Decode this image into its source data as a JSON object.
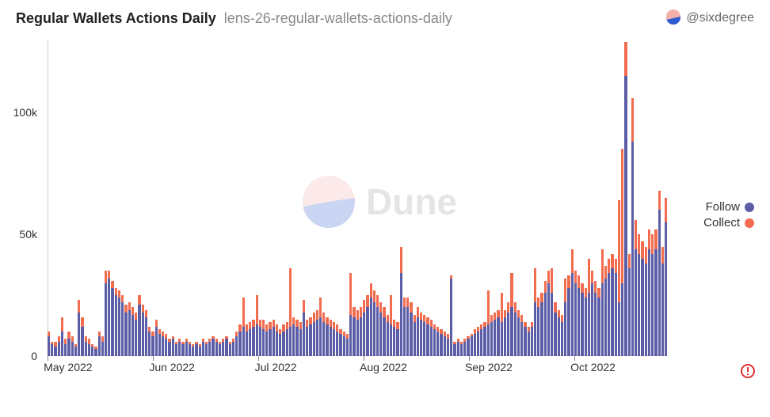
{
  "header": {
    "title": "Regular Wallets Actions Daily",
    "subtitle": "lens-26-regular-wallets-actions-daily",
    "author": "@sixdegree"
  },
  "chart": {
    "type": "stacked-bar",
    "y": {
      "min": 0,
      "max": 130000,
      "ticks": [
        0,
        50000,
        100000
      ],
      "tick_labels": [
        "0",
        "50k",
        "100k"
      ]
    },
    "x": {
      "ticks": [
        "May 2022",
        "Jun 2022",
        "Jul 2022",
        "Aug 2022",
        "Sep 2022",
        "Oct 2022"
      ],
      "tick_positions_pct": [
        0,
        17,
        34,
        51,
        68,
        85
      ]
    },
    "series": [
      {
        "name": "Follow",
        "color": "#5b5ea6"
      },
      {
        "name": "Collect",
        "color": "#f26c4f"
      }
    ],
    "follow": [
      8,
      5,
      4,
      6,
      10,
      5,
      7,
      6,
      4,
      18,
      12,
      6,
      5,
      4,
      3,
      8,
      6,
      30,
      32,
      28,
      25,
      24,
      22,
      18,
      19,
      17,
      15,
      21,
      18,
      16,
      10,
      8,
      12,
      9,
      8,
      7,
      6,
      7,
      5,
      6,
      5,
      6,
      5,
      4,
      5,
      4,
      6,
      5,
      6,
      7,
      6,
      5,
      6,
      7,
      5,
      6,
      8,
      10,
      12,
      10,
      11,
      12,
      13,
      12,
      11,
      10,
      11,
      12,
      10,
      9,
      10,
      11,
      12,
      13,
      12,
      11,
      18,
      12,
      13,
      14,
      15,
      16,
      14,
      13,
      12,
      11,
      10,
      9,
      8,
      7,
      17,
      16,
      15,
      16,
      18,
      20,
      24,
      22,
      20,
      18,
      16,
      14,
      13,
      12,
      11,
      34,
      20,
      20,
      18,
      14,
      16,
      15,
      14,
      13,
      12,
      11,
      10,
      9,
      8,
      7,
      32,
      5,
      6,
      5,
      6,
      7,
      8,
      9,
      10,
      11,
      12,
      13,
      14,
      15,
      16,
      14,
      16,
      18,
      20,
      18,
      16,
      14,
      12,
      10,
      12,
      22,
      20,
      22,
      26,
      30,
      26,
      18,
      16,
      14,
      22,
      28,
      34,
      30,
      28,
      26,
      24,
      26,
      30,
      26,
      24,
      30,
      32,
      34,
      36,
      34,
      22,
      30,
      115,
      36,
      88,
      44,
      42,
      40,
      38,
      44,
      42,
      44,
      60,
      38,
      55
    ],
    "collect": [
      2,
      1,
      2,
      2,
      6,
      2,
      3,
      2,
      1,
      5,
      4,
      2,
      2,
      1,
      1,
      2,
      2,
      5,
      3,
      3,
      3,
      3,
      3,
      3,
      3,
      3,
      3,
      4,
      3,
      3,
      2,
      2,
      3,
      2,
      2,
      2,
      1,
      1,
      1,
      1,
      1,
      1,
      1,
      1,
      1,
      1,
      1,
      1,
      1,
      1,
      1,
      1,
      1,
      1,
      1,
      1,
      2,
      3,
      12,
      3,
      3,
      3,
      12,
      3,
      4,
      3,
      3,
      3,
      3,
      2,
      3,
      3,
      24,
      3,
      3,
      3,
      5,
      3,
      3,
      4,
      4,
      8,
      4,
      3,
      3,
      3,
      3,
      2,
      2,
      2,
      17,
      4,
      4,
      4,
      5,
      5,
      6,
      5,
      5,
      4,
      4,
      3,
      12,
      3,
      3,
      11,
      4,
      4,
      4,
      3,
      4,
      3,
      3,
      3,
      3,
      2,
      2,
      2,
      2,
      2,
      1,
      1,
      1,
      1,
      1,
      1,
      1,
      2,
      2,
      2,
      2,
      14,
      3,
      3,
      3,
      12,
      3,
      4,
      14,
      4,
      3,
      3,
      2,
      2,
      2,
      14,
      4,
      4,
      5,
      5,
      10,
      4,
      3,
      3,
      10,
      5,
      10,
      5,
      5,
      4,
      4,
      14,
      5,
      5,
      4,
      14,
      5,
      6,
      6,
      6,
      42,
      55,
      14,
      6,
      18,
      12,
      8,
      7,
      7,
      8,
      8,
      8,
      8,
      7,
      10
    ],
    "background_color": "#ffffff"
  },
  "legend": {
    "items": [
      {
        "label": "Follow",
        "color": "#5b5ea6"
      },
      {
        "label": "Collect",
        "color": "#f26c4f"
      }
    ]
  },
  "watermark": {
    "text": "Dune"
  },
  "colors": {
    "title": "#222222",
    "subtitle": "#888888",
    "axis_text": "#333333",
    "axis_line": "#cccccc",
    "alert": "#e03131",
    "logo_top": "#f3b0a9",
    "logo_bottom": "#2f5bd0"
  }
}
